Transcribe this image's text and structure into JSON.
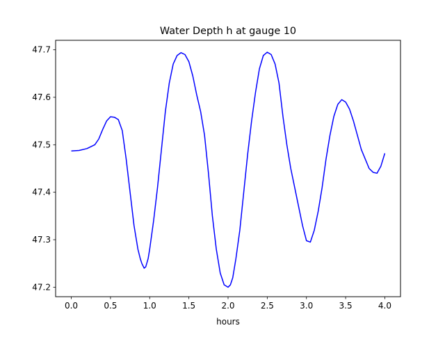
{
  "chart_data": {
    "type": "line",
    "title": "Water Depth h at gauge 10",
    "xlabel": "hours",
    "ylabel": "",
    "xlim": [
      -0.2,
      4.2
    ],
    "ylim": [
      47.18,
      47.72
    ],
    "xticks": [
      0.0,
      0.5,
      1.0,
      1.5,
      2.0,
      2.5,
      3.0,
      3.5,
      4.0
    ],
    "xtick_labels": [
      "0.0",
      "0.5",
      "1.0",
      "1.5",
      "2.0",
      "2.5",
      "3.0",
      "3.5",
      "4.0"
    ],
    "yticks": [
      47.2,
      47.3,
      47.4,
      47.5,
      47.6,
      47.7
    ],
    "ytick_labels": [
      "47.2",
      "47.3",
      "47.4",
      "47.5",
      "47.6",
      "47.7"
    ],
    "grid": false,
    "series": [
      {
        "color": "#0000ff",
        "x": [
          0.0,
          0.1,
          0.2,
          0.3,
          0.35,
          0.4,
          0.45,
          0.5,
          0.55,
          0.6,
          0.65,
          0.7,
          0.75,
          0.8,
          0.85,
          0.88,
          0.9,
          0.93,
          0.95,
          0.98,
          1.0,
          1.05,
          1.1,
          1.15,
          1.2,
          1.25,
          1.3,
          1.35,
          1.4,
          1.45,
          1.5,
          1.55,
          1.6,
          1.65,
          1.7,
          1.75,
          1.8,
          1.85,
          1.9,
          1.95,
          2.0,
          2.03,
          2.06,
          2.1,
          2.15,
          2.2,
          2.25,
          2.3,
          2.35,
          2.4,
          2.45,
          2.5,
          2.55,
          2.6,
          2.65,
          2.7,
          2.75,
          2.8,
          2.85,
          2.9,
          2.95,
          3.0,
          3.05,
          3.1,
          3.15,
          3.2,
          3.25,
          3.3,
          3.35,
          3.4,
          3.45,
          3.5,
          3.55,
          3.6,
          3.65,
          3.7,
          3.75,
          3.8,
          3.85,
          3.9,
          3.95,
          4.0
        ],
        "y": [
          47.487,
          47.488,
          47.492,
          47.5,
          47.512,
          47.532,
          47.55,
          47.559,
          47.558,
          47.553,
          47.53,
          47.47,
          47.4,
          47.33,
          47.28,
          47.26,
          47.25,
          47.24,
          47.243,
          47.26,
          47.28,
          47.34,
          47.41,
          47.49,
          47.57,
          47.63,
          47.67,
          47.688,
          47.694,
          47.69,
          47.675,
          47.645,
          47.605,
          47.57,
          47.52,
          47.44,
          47.35,
          47.28,
          47.23,
          47.205,
          47.2,
          47.205,
          47.22,
          47.26,
          47.32,
          47.4,
          47.48,
          47.55,
          47.61,
          47.66,
          47.688,
          47.695,
          47.69,
          47.67,
          47.63,
          47.56,
          47.5,
          47.45,
          47.41,
          47.37,
          47.33,
          47.298,
          47.295,
          47.32,
          47.36,
          47.41,
          47.47,
          47.52,
          47.56,
          47.585,
          47.595,
          47.59,
          47.575,
          47.55,
          47.52,
          47.49,
          47.47,
          47.45,
          47.442,
          47.44,
          47.455,
          47.482
        ]
      }
    ]
  }
}
